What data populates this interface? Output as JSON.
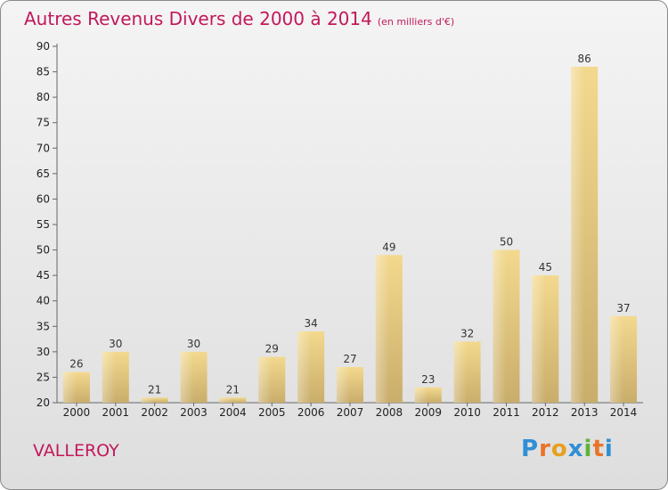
{
  "title": "Autres Revenus Divers de 2000 à 2014",
  "subtitle": "(en milliers d'€)",
  "place": "VALLEROY",
  "logo": {
    "letters": [
      "P",
      "r",
      "o",
      "x",
      "i",
      "t",
      "i"
    ],
    "colors": [
      "#2f8fd6",
      "#e8742a",
      "#e8a020",
      "#2f8fd6",
      "#5fb33c",
      "#e8742a",
      "#2f8fd6"
    ]
  },
  "chart_data": {
    "type": "bar",
    "title": "Autres Revenus Divers de 2000 à 2014",
    "subtitle": "(en milliers d'€)",
    "categories": [
      "2000",
      "2001",
      "2002",
      "2003",
      "2004",
      "2005",
      "2006",
      "2007",
      "2008",
      "2009",
      "2010",
      "2011",
      "2012",
      "2013",
      "2014"
    ],
    "values": [
      26,
      30,
      21,
      30,
      21,
      29,
      34,
      27,
      49,
      23,
      32,
      50,
      45,
      86,
      37
    ],
    "ylim": [
      20,
      90
    ],
    "yticks": [
      20,
      25,
      30,
      35,
      40,
      45,
      50,
      55,
      60,
      65,
      70,
      75,
      80,
      85,
      90
    ],
    "grid": false,
    "data_labels": true,
    "colors": {
      "bar_light": "#f3d98e",
      "bar_dark": "#c9ad6b",
      "axis": "#666666"
    }
  }
}
